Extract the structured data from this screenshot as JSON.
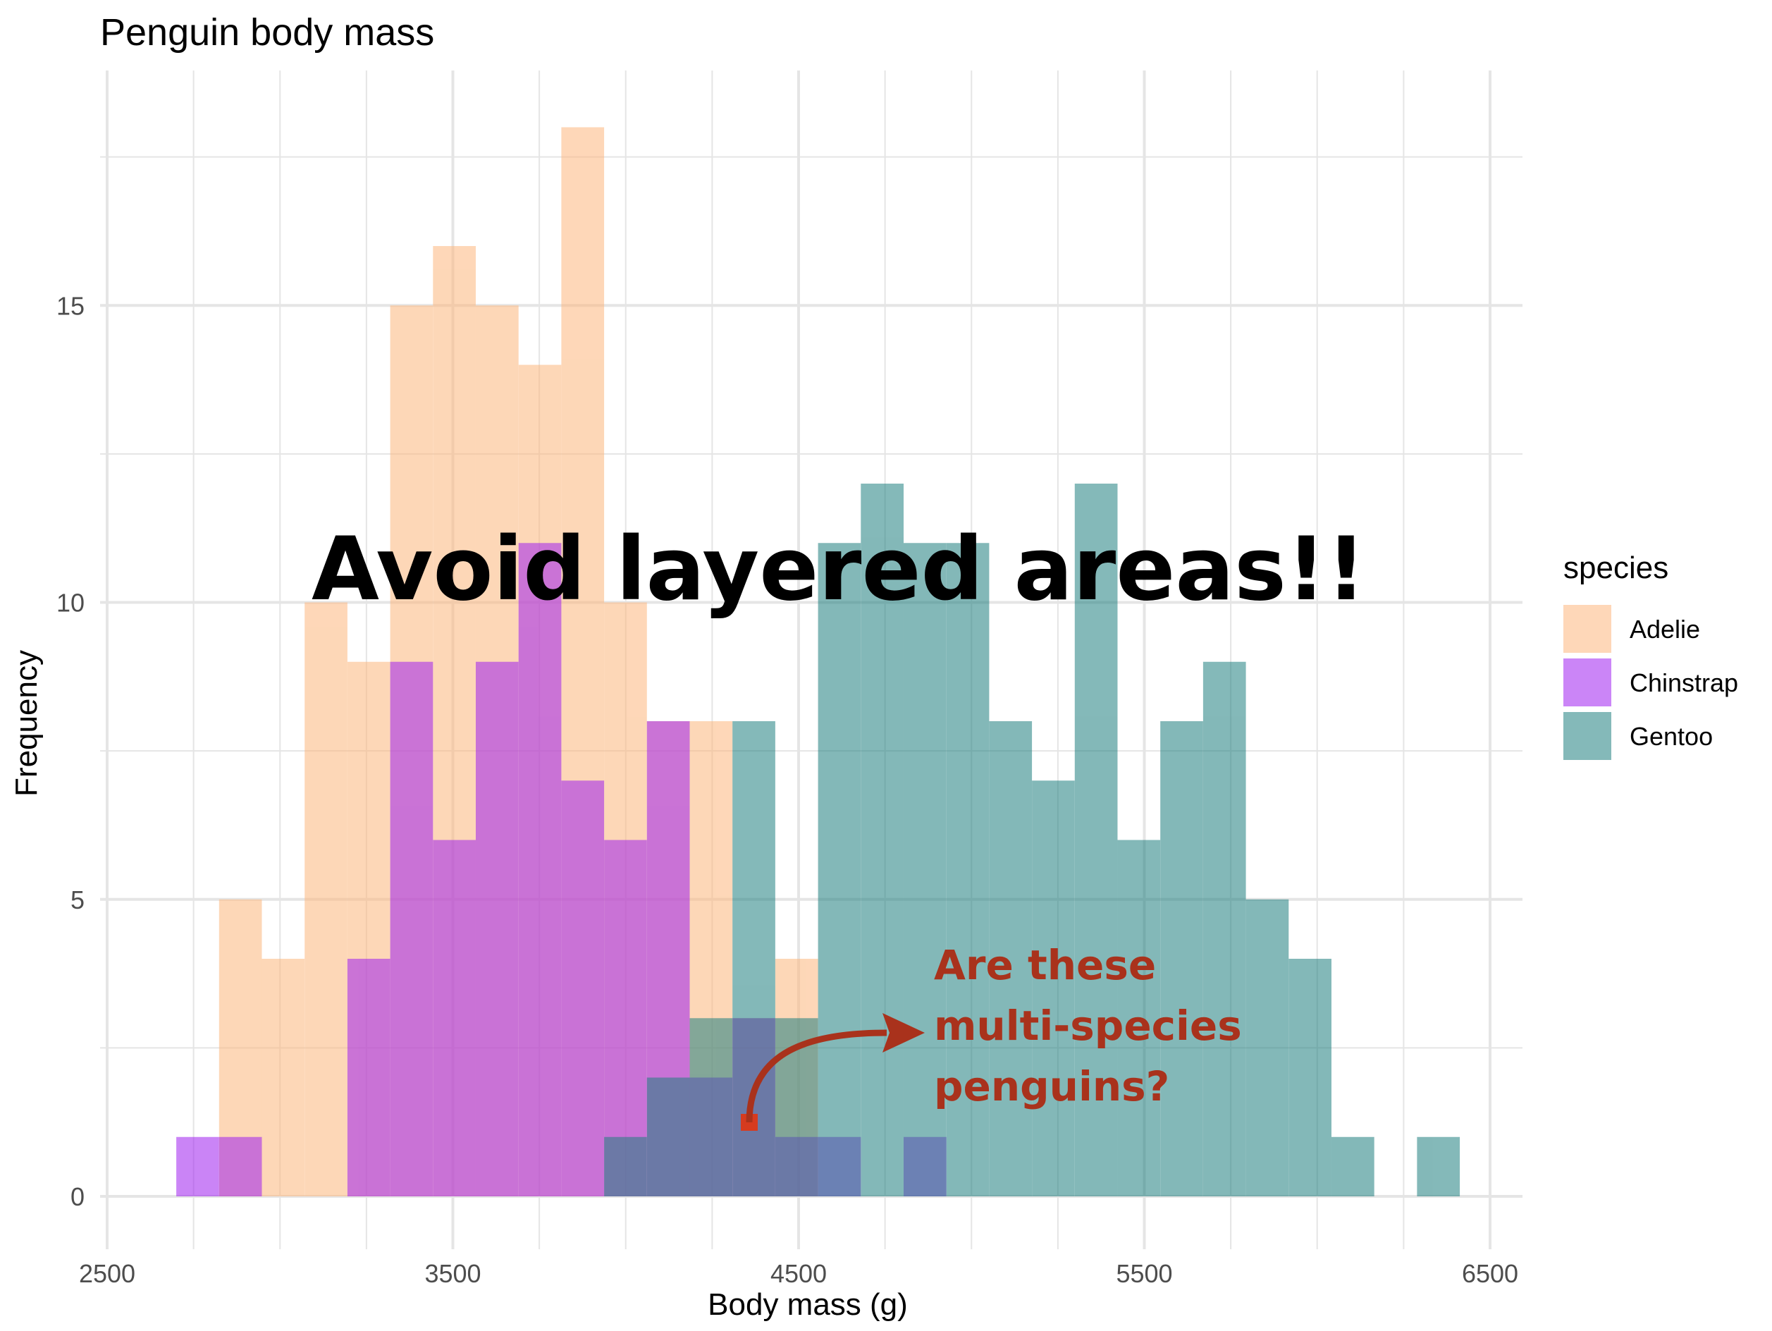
{
  "chart_data": {
    "type": "histogram",
    "title": "Penguin body mass",
    "xlabel": "Body mass (g)",
    "ylabel": "Frequency",
    "xlim": [
      2500,
      6500
    ],
    "ylim": [
      0,
      18
    ],
    "xticks": [
      2500,
      3500,
      4500,
      5500,
      6500
    ],
    "yticks": [
      0,
      5,
      10,
      15
    ],
    "grid": true,
    "bin_width": 123.75,
    "bins_x0": [
      2700,
      2823.75,
      2947.5,
      3071.25,
      3195,
      3318.75,
      3442.5,
      3566.25,
      3690,
      3813.75,
      3937.5,
      4061.25,
      4185,
      4308.75,
      4432.5,
      4556.25,
      4680,
      4803.75,
      4927.5,
      5051.25,
      5175,
      5298.75,
      5422.5,
      5546.25,
      5670,
      5793.75,
      5917.5,
      6041.25,
      6165,
      6288.75
    ],
    "series": [
      {
        "name": "Adelie",
        "color": "#fdb77d",
        "counts": [
          0,
          5,
          4,
          10,
          9,
          15,
          16,
          15,
          14,
          18,
          10,
          8,
          8,
          3,
          4,
          0,
          0,
          0,
          0,
          0,
          0,
          0,
          0,
          0,
          0,
          0,
          0,
          0,
          0,
          0
        ]
      },
      {
        "name": "Chinstrap",
        "color": "#a020f0",
        "counts": [
          1,
          1,
          0,
          0,
          4,
          9,
          6,
          9,
          11,
          7,
          6,
          8,
          2,
          3,
          1,
          1,
          0,
          1,
          0,
          0,
          0,
          0,
          0,
          0,
          0,
          0,
          0,
          0,
          0,
          0
        ]
      },
      {
        "name": "Gentoo",
        "color": "#1f7f7f",
        "counts": [
          0,
          0,
          0,
          0,
          0,
          0,
          0,
          0,
          0,
          0,
          1,
          2,
          3,
          8,
          3,
          11,
          12,
          11,
          11,
          8,
          7,
          12,
          6,
          8,
          9,
          5,
          4,
          1,
          0,
          1
        ]
      }
    ],
    "legend": {
      "title": "species",
      "position": "right"
    },
    "annotations": {
      "headline": "Avoid layered areas!!",
      "note_lines": [
        "Are these",
        "multi-species",
        "penguins?"
      ]
    }
  }
}
